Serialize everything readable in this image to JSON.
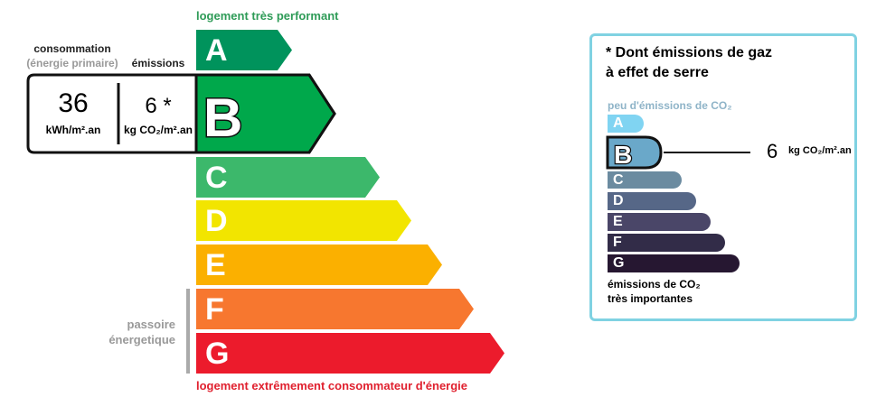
{
  "top_label": "logement très performant",
  "bottom_label": "logement extrêmement consommateur d'énergie",
  "consumption": {
    "title": "consommation",
    "subtitle": "(énergie primaire)",
    "value": "36",
    "unit": "kWh/m².an"
  },
  "emissions": {
    "title": "émissions",
    "value": "6 *",
    "unit": "kg CO₂/m².an"
  },
  "passoire": {
    "line1": "passoire",
    "line2": "énergetique"
  },
  "current_class": "B",
  "energy_classes": [
    {
      "letter": "A",
      "color": "#00935c"
    },
    {
      "letter": "B",
      "color": "#00a84b"
    },
    {
      "letter": "C",
      "color": "#3cb86b"
    },
    {
      "letter": "D",
      "color": "#f2e500"
    },
    {
      "letter": "E",
      "color": "#fbb000"
    },
    {
      "letter": "F",
      "color": "#f7772f"
    },
    {
      "letter": "G",
      "color": "#ec1b2c"
    }
  ],
  "ges_panel": {
    "title_line1": "* Dont émissions de gaz",
    "title_line2": "à effet de serre",
    "top_label": "peu d'émissions de CO₂",
    "bottom_line1": "émissions de CO₂",
    "bottom_line2": "très importantes",
    "current_class": "B",
    "value": "6",
    "unit": "kg CO₂/m².an",
    "classes": [
      {
        "letter": "A",
        "color": "#80d4f2"
      },
      {
        "letter": "B",
        "color": "#6aa8c9"
      },
      {
        "letter": "C",
        "color": "#6b8ba0"
      },
      {
        "letter": "D",
        "color": "#566787"
      },
      {
        "letter": "E",
        "color": "#4a4668"
      },
      {
        "letter": "F",
        "color": "#322c48"
      },
      {
        "letter": "G",
        "color": "#261731"
      }
    ]
  }
}
